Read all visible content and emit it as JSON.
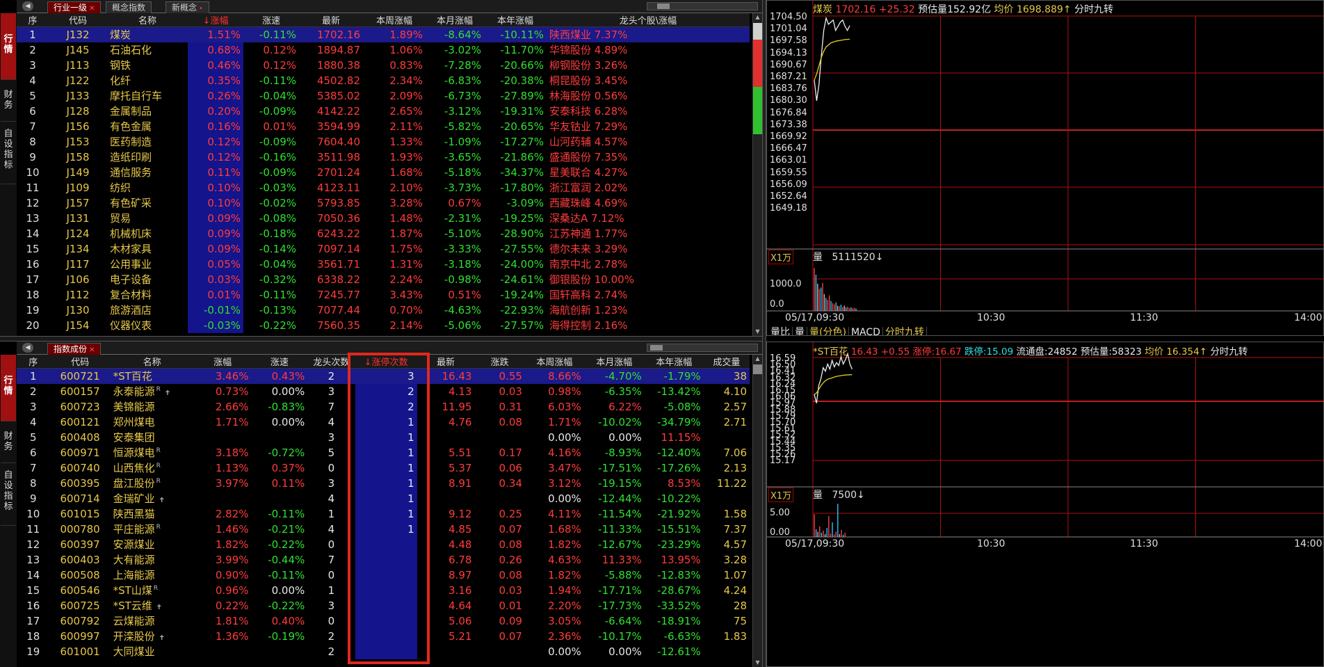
{
  "top": {
    "tabs": [
      {
        "label": "行业一级"
      },
      {
        "label": "概念指数"
      },
      {
        "label": "新概念"
      }
    ],
    "side_tabs": [
      "行情",
      "财务",
      "自设指标"
    ],
    "headers": [
      "序",
      "代码",
      "名称",
      "↓涨幅",
      "涨速",
      "最新",
      "本周涨幅",
      "本月涨幅",
      "本年涨幅",
      "龙头个股\\涨幅"
    ],
    "rows": [
      [
        "1",
        "J132",
        "煤炭",
        "1.51%",
        "-0.11%",
        "1702.16",
        "1.89%",
        "-8.64%",
        "-10.11%",
        "陕西煤业 7.37%"
      ],
      [
        "2",
        "J145",
        "石油石化",
        "0.68%",
        "0.12%",
        "1894.87",
        "1.06%",
        "-3.02%",
        "-11.70%",
        "华锦股份 4.89%"
      ],
      [
        "3",
        "J113",
        "钢铁",
        "0.46%",
        "0.12%",
        "1880.38",
        "0.83%",
        "-7.28%",
        "-20.66%",
        "柳钢股份 3.26%"
      ],
      [
        "4",
        "J122",
        "化纤",
        "0.35%",
        "-0.11%",
        "4502.82",
        "2.34%",
        "-6.83%",
        "-20.38%",
        "桐昆股份 3.45%"
      ],
      [
        "5",
        "J133",
        "摩托自行车",
        "0.26%",
        "-0.04%",
        "5385.02",
        "2.09%",
        "-6.73%",
        "-27.89%",
        "林海股份 0.56%"
      ],
      [
        "6",
        "J128",
        "金属制品",
        "0.20%",
        "-0.09%",
        "4142.22",
        "2.65%",
        "-3.12%",
        "-19.31%",
        "安泰科技 6.28%"
      ],
      [
        "7",
        "J156",
        "有色金属",
        "0.16%",
        "0.01%",
        "3594.99",
        "2.11%",
        "-5.82%",
        "-20.65%",
        "华友钴业 7.29%"
      ],
      [
        "8",
        "J153",
        "医药制造",
        "0.12%",
        "-0.09%",
        "7604.40",
        "1.33%",
        "-1.09%",
        "-17.27%",
        "山河药辅 4.57%"
      ],
      [
        "9",
        "J158",
        "造纸印刷",
        "0.12%",
        "-0.16%",
        "3511.98",
        "1.93%",
        "-3.65%",
        "-21.86%",
        "盛通股份 7.35%"
      ],
      [
        "10",
        "J149",
        "通信服务",
        "0.11%",
        "-0.09%",
        "2701.24",
        "1.68%",
        "-5.18%",
        "-34.37%",
        "星美联合 4.27%"
      ],
      [
        "11",
        "J109",
        "纺织",
        "0.10%",
        "-0.03%",
        "4123.11",
        "2.10%",
        "-3.73%",
        "-17.80%",
        "浙江富润 2.02%"
      ],
      [
        "12",
        "J157",
        "有色矿采",
        "0.10%",
        "-0.02%",
        "5793.85",
        "3.28%",
        "0.67%",
        "-3.09%",
        "西藏珠峰 4.69%"
      ],
      [
        "13",
        "J131",
        "贸易",
        "0.09%",
        "-0.08%",
        "7050.36",
        "1.48%",
        "-2.31%",
        "-19.25%",
        "深桑达A 7.12%"
      ],
      [
        "14",
        "J124",
        "机械机床",
        "0.09%",
        "-0.18%",
        "6243.22",
        "1.87%",
        "-5.10%",
        "-28.90%",
        "江苏神通 1.77%"
      ],
      [
        "15",
        "J134",
        "木材家具",
        "0.09%",
        "-0.14%",
        "7097.14",
        "1.75%",
        "-3.33%",
        "-27.55%",
        "德尔未来 3.29%"
      ],
      [
        "16",
        "J117",
        "公用事业",
        "0.05%",
        "-0.04%",
        "3561.71",
        "1.31%",
        "-3.18%",
        "-24.00%",
        "南京中北 2.78%"
      ],
      [
        "17",
        "J106",
        "电子设备",
        "0.03%",
        "-0.32%",
        "6338.22",
        "2.24%",
        "-0.98%",
        "-24.61%",
        "御银股份 10.00%"
      ],
      [
        "18",
        "J112",
        "复合材料",
        "0.01%",
        "-0.11%",
        "7245.77",
        "3.43%",
        "0.51%",
        "-19.24%",
        "国轩高科 2.74%"
      ],
      [
        "19",
        "J130",
        "旅游酒店",
        "-0.01%",
        "-0.13%",
        "7077.44",
        "0.70%",
        "-4.63%",
        "-22.93%",
        "海航创新 1.23%"
      ],
      [
        "20",
        "J154",
        "仪器仪表",
        "-0.03%",
        "-0.22%",
        "7560.35",
        "2.14%",
        "-5.06%",
        "-27.57%",
        "海得控制 2.16%"
      ]
    ]
  },
  "bottom": {
    "tabs": [
      {
        "label": "指数成份"
      }
    ],
    "side_tabs": [
      "行情",
      "财务",
      "自设指标"
    ],
    "headers": [
      "序",
      "代码",
      "名称",
      "涨幅",
      "涨速",
      "龙头次数",
      "↓涨停次数",
      "最新",
      "涨跌",
      "本周涨幅",
      "本月涨幅",
      "本年涨幅",
      "成交量"
    ],
    "rows": [
      [
        "1",
        "600721",
        "*ST百花",
        "",
        "",
        "3.46%",
        "0.43%",
        "2",
        "3",
        "16.43",
        "0.55",
        "8.66%",
        "-4.70%",
        "-1.79%",
        "38"
      ],
      [
        "2",
        "600157",
        "永泰能源",
        "R",
        "✝",
        "0.73%",
        "0.00%",
        "3",
        "2",
        "4.13",
        "0.03",
        "0.98%",
        "-6.35%",
        "-13.42%",
        "4.10"
      ],
      [
        "3",
        "600723",
        "美锦能源",
        "",
        "",
        "2.66%",
        "-0.83%",
        "7",
        "2",
        "11.95",
        "0.31",
        "6.03%",
        "6.22%",
        "-5.08%",
        "2.57"
      ],
      [
        "4",
        "600121",
        "郑州煤电",
        "",
        "",
        "1.71%",
        "0.00%",
        "4",
        "1",
        "4.76",
        "0.08",
        "1.71%",
        "-10.02%",
        "-34.79%",
        "2.71"
      ],
      [
        "5",
        "600408",
        "安泰集团",
        "",
        "",
        "",
        "",
        "3",
        "1",
        "",
        "",
        "0.00%",
        "0.00%",
        "11.15%",
        ""
      ],
      [
        "6",
        "600971",
        "恒源煤电",
        "R",
        "",
        "3.18%",
        "-0.72%",
        "5",
        "1",
        "5.51",
        "0.17",
        "4.16%",
        "-8.93%",
        "-12.40%",
        "7.06"
      ],
      [
        "7",
        "600740",
        "山西焦化",
        "R",
        "",
        "1.13%",
        "0.37%",
        "0",
        "1",
        "5.37",
        "0.06",
        "3.47%",
        "-17.51%",
        "-17.26%",
        "2.13"
      ],
      [
        "8",
        "600395",
        "盘江股份",
        "R",
        "",
        "3.97%",
        "0.11%",
        "3",
        "1",
        "8.91",
        "0.34",
        "3.12%",
        "-19.15%",
        "8.53%",
        "11.22"
      ],
      [
        "9",
        "600714",
        "金瑞矿业",
        "",
        "✝",
        "",
        "",
        "4",
        "1",
        "",
        "",
        "0.00%",
        "-12.44%",
        "-10.22%",
        ""
      ],
      [
        "10",
        "601015",
        "陕西黑猫",
        "",
        "",
        "2.82%",
        "-0.11%",
        "1",
        "1",
        "9.12",
        "0.25",
        "4.11%",
        "-11.54%",
        "-21.92%",
        "1.58"
      ],
      [
        "11",
        "000780",
        "平庄能源",
        "R",
        "",
        "1.46%",
        "-0.21%",
        "4",
        "1",
        "4.85",
        "0.07",
        "1.68%",
        "-11.33%",
        "-15.51%",
        "7.37"
      ],
      [
        "12",
        "600397",
        "安源煤业",
        "",
        "",
        "1.82%",
        "-0.22%",
        "0",
        "",
        "4.48",
        "0.08",
        "1.82%",
        "-12.67%",
        "-23.29%",
        "4.57"
      ],
      [
        "13",
        "600403",
        "大有能源",
        "",
        "",
        "3.99%",
        "-0.44%",
        "7",
        "",
        "6.78",
        "0.26",
        "4.63%",
        "11.33%",
        "13.95%",
        "3.28"
      ],
      [
        "14",
        "600508",
        "上海能源",
        "",
        "",
        "0.90%",
        "-0.11%",
        "0",
        "",
        "8.97",
        "0.08",
        "1.82%",
        "-5.88%",
        "-12.83%",
        "1.07"
      ],
      [
        "15",
        "600546",
        "*ST山煤",
        "R",
        "",
        "0.96%",
        "0.00%",
        "1",
        "",
        "3.16",
        "0.03",
        "1.94%",
        "-17.71%",
        "-28.67%",
        "4.24"
      ],
      [
        "16",
        "600725",
        "*ST云维",
        "",
        "✝",
        "0.22%",
        "-0.22%",
        "3",
        "",
        "4.64",
        "0.01",
        "2.20%",
        "-17.73%",
        "-33.52%",
        "28"
      ],
      [
        "17",
        "600792",
        "云煤能源",
        "",
        "",
        "1.81%",
        "0.40%",
        "0",
        "",
        "5.06",
        "0.09",
        "3.05%",
        "-6.64%",
        "-18.91%",
        "75"
      ],
      [
        "18",
        "600997",
        "开滦股份",
        "",
        "✝",
        "1.36%",
        "-0.19%",
        "2",
        "",
        "5.21",
        "0.07",
        "2.36%",
        "-10.17%",
        "-6.63%",
        "1.83"
      ],
      [
        "19",
        "601001",
        "大同煤业",
        "",
        "",
        "",
        "",
        "2",
        "",
        "",
        "",
        "0.00%",
        "0.00%",
        "-12.61%",
        ""
      ]
    ]
  },
  "chart_top": {
    "name": "煤炭",
    "price": "1702.16",
    "change": "+25.32",
    "est_label": "预估量",
    "est_value": "152.92亿",
    "avg_label": "均价",
    "avg_value": "1698.889↑",
    "mode": "分时九转",
    "yticks": [
      "1704.50",
      "1701.04",
      "1697.58",
      "1694.13",
      "1690.67",
      "1687.21",
      "1683.76",
      "1680.30",
      "1676.84",
      "1673.38",
      "1669.92",
      "1666.47",
      "1663.01",
      "1659.55",
      "1656.09",
      "1652.64",
      "1649.18"
    ],
    "unit": "X1万",
    "vol_label": "量",
    "vol_value": "5111520↓",
    "vol_ticks": [
      "1000.0",
      "0.0"
    ],
    "xticks": [
      "05/17,09:30",
      "10:30",
      "11:30",
      "14:00"
    ],
    "bottom_tabs": [
      "量比",
      "量",
      "量(分色)",
      "MACD",
      "分时九转"
    ],
    "price_series": [
      1689,
      1684,
      1688,
      1695,
      1701,
      1704,
      1702.5,
      1703,
      1703.5,
      1701,
      1702,
      1703,
      1703.5,
      1702,
      1701,
      1702.16
    ],
    "avg_series": [
      1689,
      1690.5,
      1692.5,
      1694.5,
      1696,
      1697,
      1697.5,
      1698,
      1698.2,
      1698.4,
      1698.5,
      1698.6,
      1698.7,
      1698.8,
      1698.85,
      1698.889
    ],
    "vol_series": [
      1650,
      1400,
      1050,
      850,
      900,
      1080,
      650,
      500,
      420,
      600,
      380,
      300,
      250,
      330,
      200,
      180,
      240,
      150,
      200,
      130,
      160,
      110,
      140,
      100,
      120,
      90
    ]
  },
  "chart_bot": {
    "name": "*ST百花",
    "price": "16.43",
    "change": "+0.55",
    "limit_up_label": "涨停:",
    "limit_up": "16.67",
    "limit_down_label": "跌停:",
    "limit_down": "15.09",
    "float_label": "流通盘:",
    "float_value": "24852",
    "est_label": "预估量:",
    "est_value": "58323",
    "avg_label": "均价",
    "avg_value": "16.354↑",
    "mode": "分时九转",
    "yticks": [
      "16.59",
      "16.50",
      "16.41",
      "16.32",
      "16.24",
      "16.15",
      "16.06",
      "15.97",
      "15.88",
      "15.79",
      "15.70",
      "15.61",
      "15.52",
      "15.44",
      "15.35",
      "15.26",
      "15.17"
    ],
    "unit": "X1万",
    "vol_label": "量",
    "vol_value": "7500↓",
    "vol_ticks": [
      "5.00",
      "0.00"
    ],
    "xticks": [
      "05/17,09:30",
      "10:30",
      "11:30",
      "14:00"
    ],
    "price_series": [
      16.08,
      15.96,
      16.2,
      16.3,
      16.45,
      16.4,
      16.5,
      16.43,
      16.55,
      16.46,
      16.52,
      16.48,
      16.6,
      16.5,
      16.56,
      16.64,
      16.5,
      16.43
    ],
    "avg_series": [
      16.08,
      16.1,
      16.15,
      16.2,
      16.24,
      16.27,
      16.29,
      16.3,
      16.31,
      16.32,
      16.33,
      16.335,
      16.34,
      16.345,
      16.348,
      16.35,
      16.352,
      16.354
    ],
    "vol_series": [
      6.5,
      2.2,
      1.5,
      3.0,
      1.2,
      1.8,
      0.8,
      2.6,
      6.0,
      1.0,
      4.2,
      0.7,
      1.5,
      9.5,
      0.8,
      2.0,
      0.6,
      1.2
    ]
  }
}
